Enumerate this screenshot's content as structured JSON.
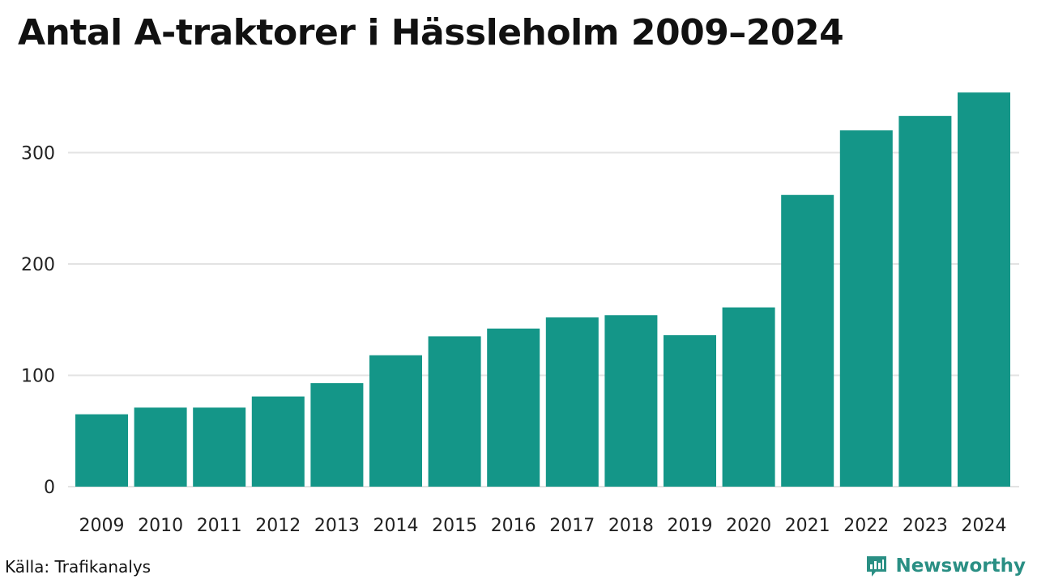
{
  "colors": {
    "bar": "#149688",
    "grid": "#e3e3e3",
    "brand": "#2a8f84"
  },
  "footer": {
    "source": "Källa: Trafikanalys",
    "brand_name": "Newsworthy",
    "brand_icon": "bar-chart-speech-bubble-icon"
  },
  "chart_data": {
    "type": "bar",
    "title": "Antal A-traktorer i Hässleholm 2009–2024",
    "xlabel": "",
    "ylabel": "",
    "categories": [
      "2009",
      "2010",
      "2011",
      "2012",
      "2013",
      "2014",
      "2015",
      "2016",
      "2017",
      "2018",
      "2019",
      "2020",
      "2021",
      "2022",
      "2023",
      "2024"
    ],
    "values": [
      65,
      71,
      71,
      81,
      93,
      118,
      135,
      142,
      152,
      154,
      136,
      161,
      262,
      320,
      333,
      354
    ],
    "ylim": [
      0,
      360
    ],
    "yticks": [
      0,
      100,
      200,
      300
    ],
    "grid": true,
    "legend": "none"
  }
}
